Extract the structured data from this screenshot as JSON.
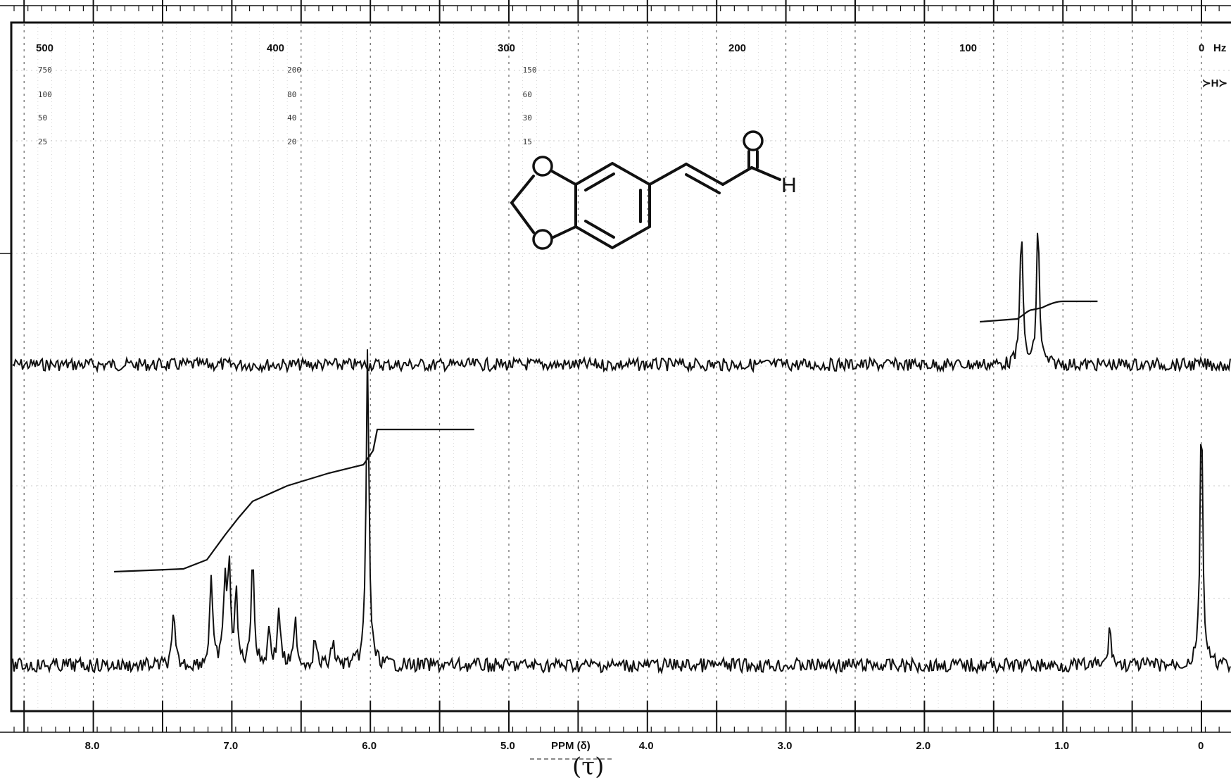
{
  "chart_data": {
    "type": "line",
    "title": "",
    "xlabel": "PPM (δ)",
    "x_annotation": "(τ)",
    "xlim": [
      8.6,
      -0.2
    ],
    "x_ticks": [
      {
        "value": 8.0,
        "label": "8.0"
      },
      {
        "value": 7.0,
        "label": "7.0"
      },
      {
        "value": 6.0,
        "label": "6.0"
      },
      {
        "value": 5.0,
        "label": "5.0"
      },
      {
        "value": 4.0,
        "label": "4.0"
      },
      {
        "value": 3.0,
        "label": "3.0"
      },
      {
        "value": 2.0,
        "label": "2.0"
      },
      {
        "value": 1.0,
        "label": "1.0"
      },
      {
        "value": 0.0,
        "label": "0"
      }
    ],
    "hz_axis": {
      "unit": "Hz",
      "ticks": [
        {
          "value": 500,
          "label": "500"
        },
        {
          "value": 400,
          "label": "400"
        },
        {
          "value": 300,
          "label": "300"
        },
        {
          "value": 200,
          "label": "200"
        },
        {
          "value": 100,
          "label": "100"
        },
        {
          "value": 0,
          "label": "0"
        }
      ]
    },
    "sweep_width_scales": [
      {
        "label": "750",
        "ppm": 8.4
      },
      {
        "label": "100",
        "ppm": 8.4
      },
      {
        "label": "50",
        "ppm": 8.4
      },
      {
        "label": "25",
        "ppm": 8.4
      },
      {
        "label": "200",
        "ppm": 6.6
      },
      {
        "label": "80",
        "ppm": 6.6
      },
      {
        "label": "40",
        "ppm": 6.6
      },
      {
        "label": "20",
        "ppm": 6.6
      },
      {
        "label": "150",
        "ppm": 4.9
      },
      {
        "label": "60",
        "ppm": 4.9
      },
      {
        "label": "30",
        "ppm": 4.9
      },
      {
        "label": "15",
        "ppm": 4.9
      }
    ],
    "tms_label": "≻H≻",
    "grid": true,
    "structure": {
      "name": "3,4-methylenedioxycinnamaldehyde",
      "atom_labels": [
        "O",
        "O",
        "O",
        "H"
      ]
    },
    "series": [
      {
        "kind": "offset-spectrum",
        "peaks": [
          {
            "ppm": 9.62,
            "height": 0.93,
            "display_ppm": 1.3
          },
          {
            "ppm": 9.58,
            "height": 0.93,
            "display_ppm": 1.18
          }
        ],
        "integral_range": [
          1.6,
          0.75
        ]
      },
      {
        "kind": "main-spectrum",
        "peaks": [
          {
            "ppm": 7.42,
            "height": 0.28
          },
          {
            "ppm": 7.15,
            "height": 0.5
          },
          {
            "ppm": 7.05,
            "height": 0.48
          },
          {
            "ppm": 7.02,
            "height": 0.53
          },
          {
            "ppm": 6.97,
            "height": 0.4
          },
          {
            "ppm": 6.85,
            "height": 0.65
          },
          {
            "ppm": 6.73,
            "height": 0.21
          },
          {
            "ppm": 6.66,
            "height": 0.33
          },
          {
            "ppm": 6.54,
            "height": 0.25
          },
          {
            "ppm": 6.4,
            "height": 0.15
          },
          {
            "ppm": 6.27,
            "height": 0.14
          },
          {
            "ppm": 6.02,
            "height": 1.8
          },
          {
            "ppm": 0.66,
            "height": 0.22
          },
          {
            "ppm": 0.0,
            "height": 1.44
          }
        ],
        "integral_range": [
          7.85,
          5.25
        ]
      }
    ]
  }
}
